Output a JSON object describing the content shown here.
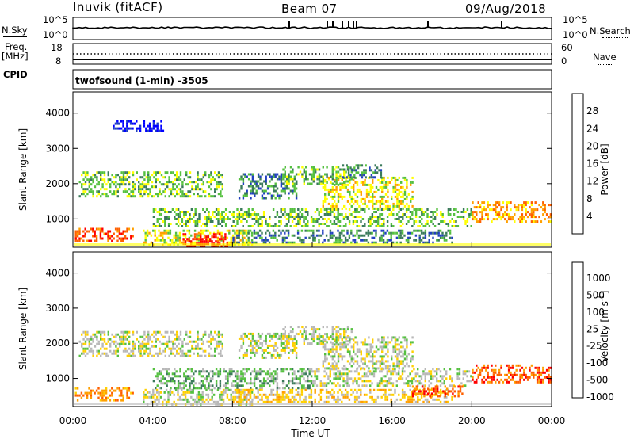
{
  "header": {
    "site": "Inuvik (fitACF)",
    "beam": "Beam 07",
    "date": "09/Aug/2018"
  },
  "strips": {
    "nsky_label": "N.Sky",
    "nsky_ticks": [
      "10^5",
      "10^0"
    ],
    "nsearch_label": "N.Search",
    "nsearch_ticks": [
      "10^5",
      "10^0"
    ],
    "freq_label": "Freq.",
    "freq_unit": "[MHz]",
    "freq_ticks": [
      "18",
      "8"
    ],
    "nave_label": "Nave",
    "nave_ticks": [
      "60",
      "0"
    ],
    "cpid_label": "CPID",
    "cpid_value": "twofsound (1-min) -3505"
  },
  "colors": {
    "power": [
      "#0000ff",
      "#2040c0",
      "#3a7a5a",
      "#55c040",
      "#ffff00",
      "#ffa000",
      "#ff6000",
      "#ff0000"
    ],
    "velocity": [
      "#0000ff",
      "#2f5fa0",
      "#3a7a5a",
      "#55c040",
      "#b8b8b8",
      "#ffd000",
      "#ffa000",
      "#ff6000",
      "#ff0000"
    ]
  },
  "chart_data": [
    {
      "type": "heatmap",
      "name": "power",
      "ylabel": "Slant Range [km]",
      "yticks": [
        "4000",
        "3000",
        "2000",
        "1000"
      ],
      "ylim": [
        200,
        4600
      ],
      "xlim_hours": [
        0,
        24
      ],
      "colorbar_label": "Power [dB]",
      "colorbar_ticks": [
        "28",
        "24",
        "20",
        "16",
        "12",
        "8",
        "4"
      ],
      "bands": [
        {
          "t0": 0.3,
          "t1": 7.5,
          "r0": 1650,
          "r1": 2350,
          "level": 3
        },
        {
          "t0": 8.3,
          "t1": 11.2,
          "r0": 1600,
          "r1": 2300,
          "level": 2
        },
        {
          "t0": 10.5,
          "t1": 14.0,
          "r0": 2000,
          "r1": 2500,
          "level": 3
        },
        {
          "t0": 12.5,
          "t1": 17.0,
          "r0": 1300,
          "r1": 2200,
          "level": 4
        },
        {
          "t0": 13.5,
          "t1": 15.5,
          "r0": 2200,
          "r1": 2550,
          "level": 2
        },
        {
          "t0": 4.0,
          "t1": 20.0,
          "r0": 800,
          "r1": 1300,
          "level": 3
        },
        {
          "t0": 20.0,
          "t1": 24.0,
          "r0": 900,
          "r1": 1500,
          "level": 5
        },
        {
          "t0": 0.1,
          "t1": 3.0,
          "r0": 350,
          "r1": 750,
          "level": 6
        },
        {
          "t0": 3.5,
          "t1": 9.0,
          "r0": 250,
          "r1": 700,
          "level": 4
        },
        {
          "t0": 5.5,
          "t1": 7.7,
          "r0": 220,
          "r1": 600,
          "level": 7
        },
        {
          "t0": 8.0,
          "t1": 19.0,
          "r0": 300,
          "r1": 700,
          "level": 2
        },
        {
          "t0": 2.0,
          "t1": 4.5,
          "r0": 3500,
          "r1": 3800,
          "level": 0
        }
      ]
    },
    {
      "type": "heatmap",
      "name": "velocity",
      "ylabel": "Slant Range [km]",
      "yticks": [
        "4000",
        "3000",
        "2000",
        "1000"
      ],
      "ylim": [
        200,
        4600
      ],
      "xlim_hours": [
        0,
        24
      ],
      "xticks": [
        "00:00",
        "04:00",
        "08:00",
        "12:00",
        "16:00",
        "20:00",
        "00:00"
      ],
      "xlabel": "Time UT",
      "colorbar_label": "Velocity [m s^-1]",
      "colorbar_ticks": [
        "1000",
        "500",
        "100",
        "25",
        "-25",
        "-100",
        "-500",
        "-1000"
      ],
      "bands": [
        {
          "t0": 0.3,
          "t1": 7.5,
          "r0": 1650,
          "r1": 2350,
          "level": 4
        },
        {
          "t0": 8.3,
          "t1": 11.2,
          "r0": 1600,
          "r1": 2300,
          "level": 4
        },
        {
          "t0": 10.5,
          "t1": 14.0,
          "r0": 2000,
          "r1": 2500,
          "level": 4
        },
        {
          "t0": 12.5,
          "t1": 17.0,
          "r0": 1300,
          "r1": 2200,
          "level": 4
        },
        {
          "t0": 4.0,
          "t1": 12.0,
          "r0": 700,
          "r1": 1300,
          "level": 3
        },
        {
          "t0": 12.0,
          "t1": 20.0,
          "r0": 800,
          "r1": 1300,
          "level": 4
        },
        {
          "t0": 20.0,
          "t1": 24.0,
          "r0": 900,
          "r1": 1400,
          "level": 7
        },
        {
          "t0": 0.1,
          "t1": 3.0,
          "r0": 350,
          "r1": 750,
          "level": 6
        },
        {
          "t0": 3.5,
          "t1": 9.0,
          "r0": 250,
          "r1": 700,
          "level": 4
        },
        {
          "t0": 8.0,
          "t1": 19.0,
          "r0": 300,
          "r1": 700,
          "level": 5
        },
        {
          "t0": 17.0,
          "t1": 19.5,
          "r0": 500,
          "r1": 800,
          "level": 7
        }
      ]
    }
  ]
}
